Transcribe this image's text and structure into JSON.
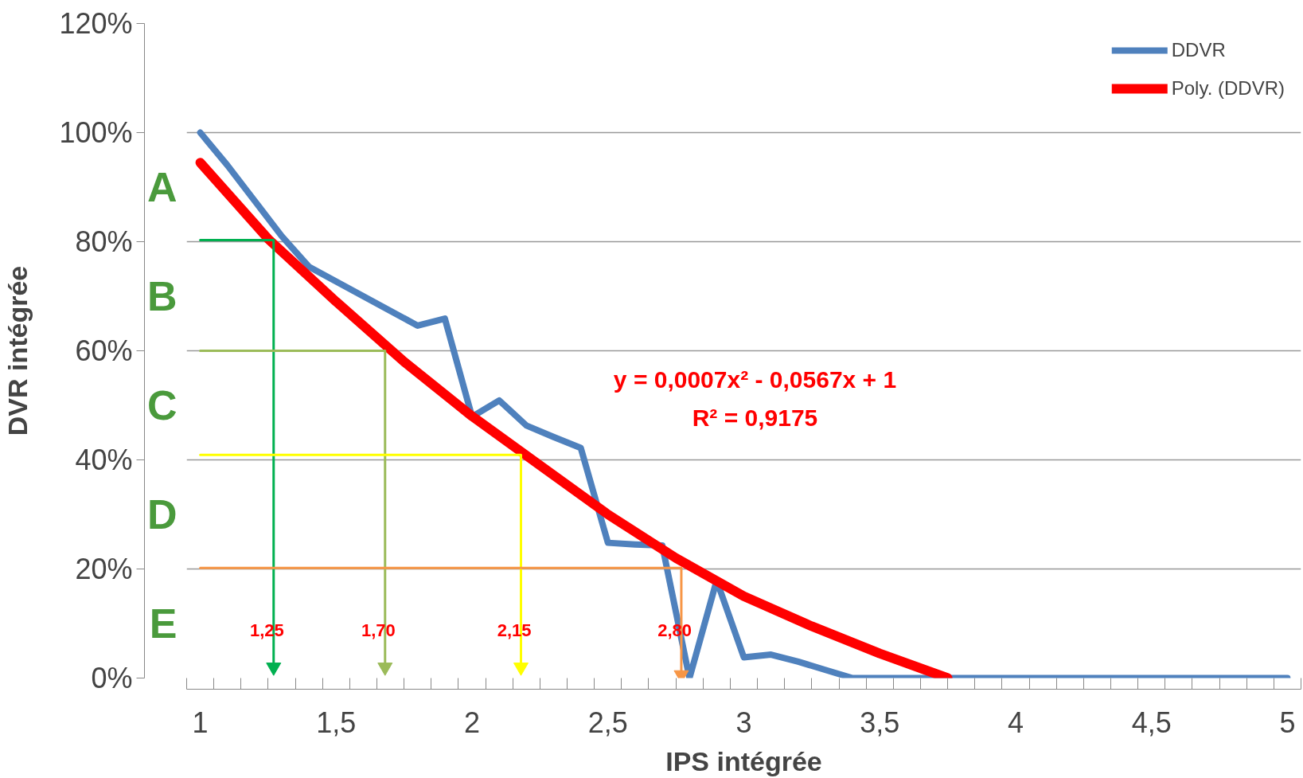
{
  "chart_data": {
    "type": "line",
    "xlabel": "IPS intégrée",
    "ylabel": "DVR intégrée",
    "xlim": [
      0.95,
      5.05
    ],
    "ylim": [
      0,
      120
    ],
    "xticks": [
      {
        "value": 1,
        "label": "1"
      },
      {
        "value": 1.5,
        "label": "1,5"
      },
      {
        "value": 2,
        "label": "2"
      },
      {
        "value": 2.5,
        "label": "2,5"
      },
      {
        "value": 3,
        "label": "3"
      },
      {
        "value": 3.5,
        "label": "3,5"
      },
      {
        "value": 4,
        "label": "4"
      },
      {
        "value": 4.5,
        "label": "4,5"
      },
      {
        "value": 5,
        "label": "5"
      },
      {
        "value": 0.95,
        "label": null
      },
      {
        "value": 1.05,
        "label": null
      },
      {
        "value": 1.15,
        "label": null
      },
      {
        "value": 1.25,
        "label": null
      },
      {
        "value": 1.35,
        "label": null
      },
      {
        "value": 1.45,
        "label": null
      },
      {
        "value": 1.55,
        "label": null
      },
      {
        "value": 1.65,
        "label": null
      },
      {
        "value": 1.75,
        "label": null
      },
      {
        "value": 1.85,
        "label": null
      },
      {
        "value": 1.95,
        "label": null
      },
      {
        "value": 2.05,
        "label": null
      },
      {
        "value": 2.15,
        "label": null
      },
      {
        "value": 2.25,
        "label": null
      },
      {
        "value": 2.35,
        "label": null
      },
      {
        "value": 2.45,
        "label": null
      },
      {
        "value": 2.55,
        "label": null
      },
      {
        "value": 2.65,
        "label": null
      },
      {
        "value": 2.75,
        "label": null
      },
      {
        "value": 2.85,
        "label": null
      },
      {
        "value": 2.95,
        "label": null
      },
      {
        "value": 3.05,
        "label": null
      },
      {
        "value": 3.15,
        "label": null
      },
      {
        "value": 3.25,
        "label": null
      },
      {
        "value": 3.35,
        "label": null
      },
      {
        "value": 3.45,
        "label": null
      },
      {
        "value": 3.55,
        "label": null
      },
      {
        "value": 3.65,
        "label": null
      },
      {
        "value": 3.75,
        "label": null
      },
      {
        "value": 3.85,
        "label": null
      },
      {
        "value": 3.95,
        "label": null
      },
      {
        "value": 4.05,
        "label": null
      },
      {
        "value": 4.15,
        "label": null
      },
      {
        "value": 4.25,
        "label": null
      },
      {
        "value": 4.35,
        "label": null
      },
      {
        "value": 4.45,
        "label": null
      },
      {
        "value": 4.55,
        "label": null
      },
      {
        "value": 4.65,
        "label": null
      },
      {
        "value": 4.75,
        "label": null
      },
      {
        "value": 4.85,
        "label": null
      },
      {
        "value": 4.95,
        "label": null
      },
      {
        "value": 5.05,
        "label": null
      }
    ],
    "yticks": [
      {
        "value": 0,
        "label": "0%"
      },
      {
        "value": 20,
        "label": "20%"
      },
      {
        "value": 40,
        "label": "40%"
      },
      {
        "value": 60,
        "label": "60%"
      },
      {
        "value": 80,
        "label": "80%"
      },
      {
        "value": 100,
        "label": "100%"
      },
      {
        "value": 120,
        "label": "120%"
      }
    ],
    "grid": "y",
    "legend": "top right",
    "marker": "none",
    "line_style": "solid",
    "series": [
      {
        "name": "DDVR",
        "color": "#4f81bd",
        "x": [
          1,
          1.1,
          1.2,
          1.3,
          1.4,
          1.5,
          1.6,
          1.7,
          1.8,
          1.9,
          2.0,
          2.1,
          2.2,
          2.3,
          2.4,
          2.5,
          2.6,
          2.7,
          2.8,
          2.9,
          3.0,
          3.1,
          3.2,
          3.3,
          3.4,
          3.5,
          4.0,
          4.5,
          5.0
        ],
        "values": [
          100,
          94,
          87.5,
          81,
          75.4,
          72.7,
          70,
          67.3,
          64.6,
          65.9,
          47.9,
          50.9,
          46.3,
          44.2,
          42.2,
          24.8,
          24.5,
          24.3,
          0,
          17.9,
          3.8,
          4.3,
          3,
          1.5,
          0,
          0,
          0,
          0,
          0
        ]
      },
      {
        "name": "Poly. (DDVR)",
        "color": "#ff0000",
        "x": [
          1,
          1.25,
          1.5,
          1.75,
          2.0,
          2.25,
          2.5,
          2.75,
          3.0,
          3.25,
          3.5,
          3.75
        ],
        "values": [
          94.5,
          80.5,
          69,
          58,
          48,
          39,
          30,
          22,
          15,
          9.5,
          4.5,
          0
        ]
      },
      {
        "color": "#00b050",
        "x": [
          1,
          1.27,
          1.27
        ],
        "values": [
          80.3,
          80.3,
          2
        ]
      },
      {
        "color": "#9bbb59",
        "x": [
          1,
          1.68,
          1.68
        ],
        "values": [
          60,
          60,
          2
        ]
      },
      {
        "color": "#ffff00",
        "x": [
          1,
          2.18,
          2.18
        ],
        "values": [
          40.9,
          40.9,
          2
        ]
      },
      {
        "color": "#f79646",
        "x": [
          1,
          2.77,
          2.77
        ],
        "values": [
          20.2,
          20.2,
          0.6
        ]
      }
    ],
    "annotations": [
      "y = 0,0007x² - 0,0567x + 1",
      "R² = 0,9175",
      "1,25",
      "1,70",
      "2,15",
      "2,80",
      "A",
      "B",
      "C",
      "D",
      "E"
    ]
  }
}
